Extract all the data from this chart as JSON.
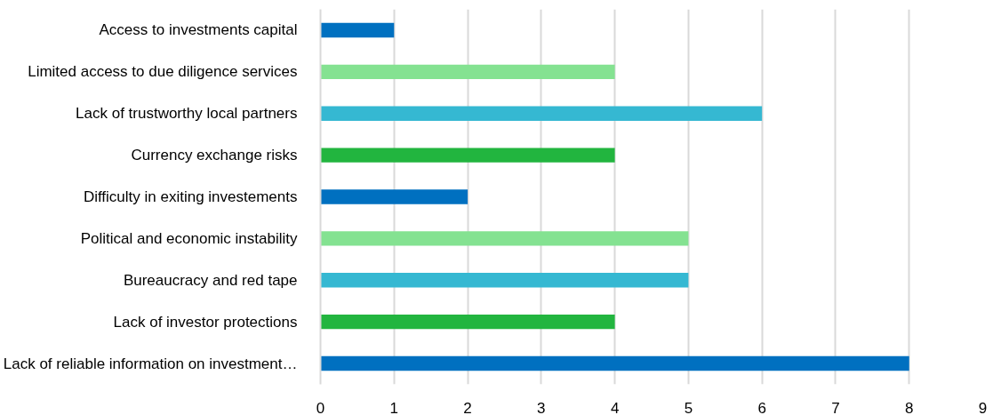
{
  "chart_data": {
    "type": "bar",
    "orientation": "horizontal",
    "categories": [
      "Access to investments capital",
      "Limited access to due diligence services",
      "Lack of trustworthy local partners",
      "Currency exchange risks",
      "Difficulty in exiting investements",
      "Political and economic instability",
      "Bureaucracy and red tape",
      "Lack of investor protections",
      "Lack of reliable information on investment…"
    ],
    "values": [
      1,
      4,
      6,
      4,
      2,
      5,
      5,
      4,
      8
    ],
    "colors": [
      "#0070c0",
      "#84e291",
      "#35b8d2",
      "#22b53f",
      "#0070c0",
      "#84e291",
      "#35b8d2",
      "#22b53f",
      "#0070c0"
    ],
    "xlim": [
      0,
      9
    ],
    "xticks": [
      0,
      1,
      2,
      3,
      4,
      5,
      6,
      7,
      8,
      9
    ],
    "grid": "x"
  }
}
